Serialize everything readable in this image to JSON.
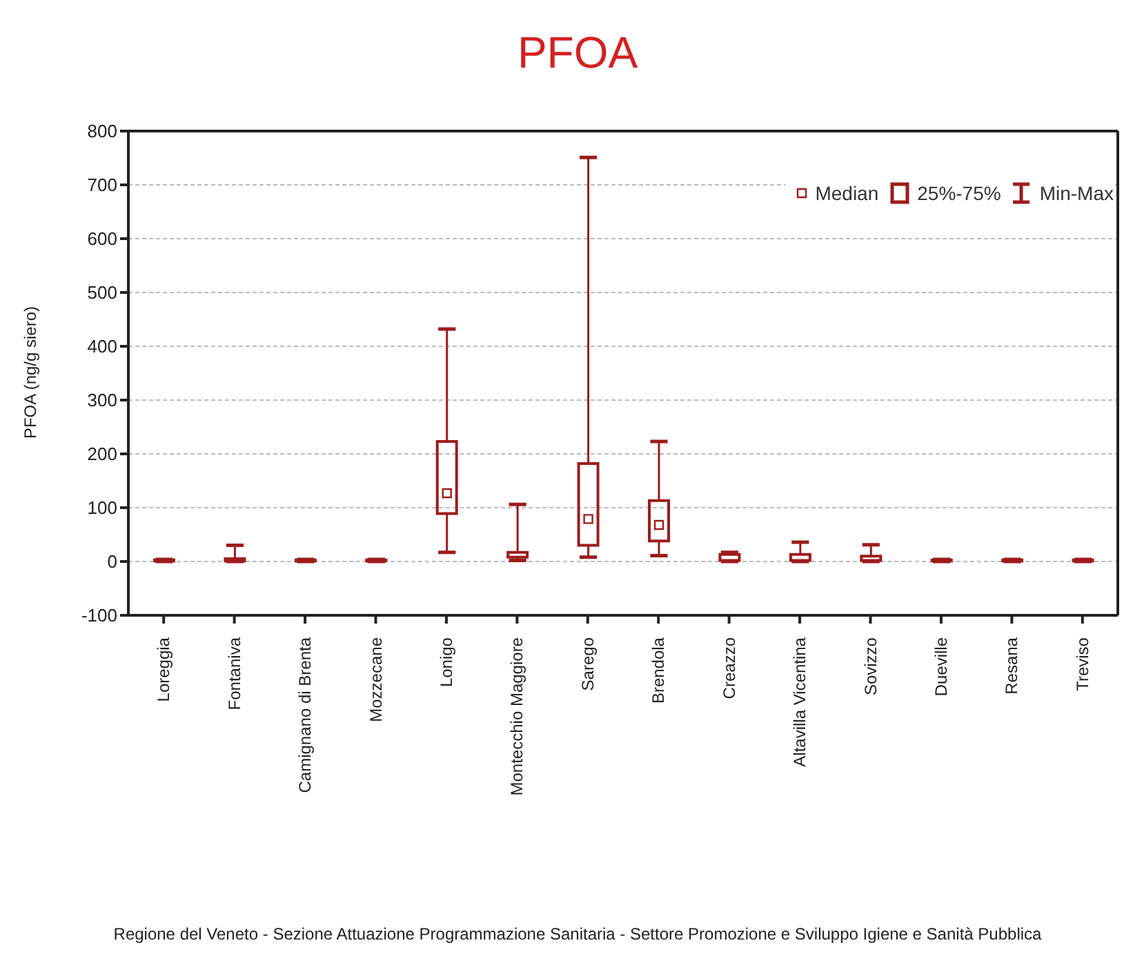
{
  "chart_data": {
    "type": "box",
    "title": "PFOA",
    "ylabel": "PFOA (ng/g siero)",
    "categories": [
      "Loreggia",
      "Fontaniva",
      "Camignano di Brenta",
      "Mozzecane",
      "Lonigo",
      "Montecchio Maggiore",
      "Sarego",
      "Brendola",
      "Creazzo",
      "Altavilla Vicentina",
      "Sovizzo",
      "Dueville",
      "Resana",
      "Treviso"
    ],
    "boxes": [
      {
        "low": 0,
        "q1": 1,
        "median": 2,
        "q3": 3,
        "high": 4
      },
      {
        "low": 0,
        "q1": 1,
        "median": 3,
        "q3": 5,
        "high": 30
      },
      {
        "low": 0,
        "q1": 1,
        "median": 2,
        "q3": 3,
        "high": 4
      },
      {
        "low": 0,
        "q1": 1,
        "median": 2,
        "q3": 3,
        "high": 4
      },
      {
        "low": 17,
        "q1": 89,
        "median": 127,
        "q3": 223,
        "high": 432
      },
      {
        "low": 2,
        "q1": 8,
        "median": 11,
        "q3": 17,
        "high": 106
      },
      {
        "low": 8,
        "q1": 30,
        "median": 79,
        "q3": 182,
        "high": 751
      },
      {
        "low": 11,
        "q1": 38,
        "median": 68,
        "q3": 113,
        "high": 223
      },
      {
        "low": 0,
        "q1": 2,
        "median": 5,
        "q3": 13,
        "high": 17
      },
      {
        "low": 0,
        "q1": 2,
        "median": 5,
        "q3": 13,
        "high": 36
      },
      {
        "low": 0,
        "q1": 2,
        "median": 5,
        "q3": 10,
        "high": 31
      },
      {
        "low": 0,
        "q1": 1,
        "median": 2,
        "q3": 3,
        "high": 4
      },
      {
        "low": 0,
        "q1": 1,
        "median": 2,
        "q3": 3,
        "high": 4
      },
      {
        "low": 0,
        "q1": 1,
        "median": 2,
        "q3": 3,
        "high": 4
      }
    ],
    "color": "#9e1b1b",
    "ylim": [
      -100,
      800
    ],
    "yticks": [
      -100,
      0,
      100,
      200,
      300,
      400,
      500,
      600,
      700,
      800
    ],
    "grid": "y",
    "annotations": [
      "Median",
      "25%-75%",
      "Min-Max",
      "Regione del Veneto - Sezione Attuazione Programmazione Sanitaria - Settore Promozione e Sviluppo Igiene e Sanità Pubblica"
    ]
  }
}
